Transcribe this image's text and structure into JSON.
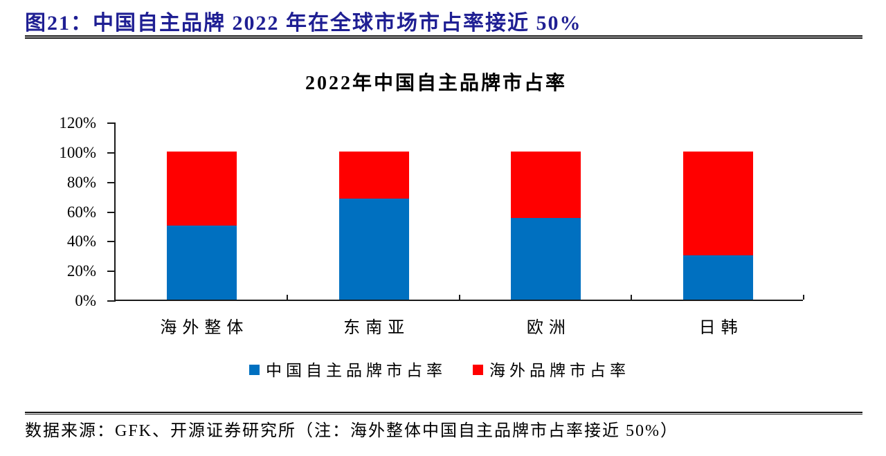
{
  "header": {
    "title": "图21：中国自主品牌 2022 年在全球市场市占率接近 50%"
  },
  "chart_data": {
    "type": "bar",
    "stacked": true,
    "title": "2022年中国自主品牌市占率",
    "categories": [
      "海外整体",
      "东南亚",
      "欧洲",
      "日韩"
    ],
    "series": [
      {
        "name": "中国自主品牌市占率",
        "color": "#0070C0",
        "values": [
          50,
          68,
          55,
          30
        ]
      },
      {
        "name": "海外品牌市占率",
        "color": "#FF0000",
        "values": [
          50,
          32,
          45,
          70
        ]
      }
    ],
    "xlabel": "",
    "ylabel": "",
    "ylim": [
      0,
      120
    ],
    "ytick_step": 20,
    "ytick_labels": [
      "0%",
      "20%",
      "40%",
      "60%",
      "80%",
      "100%",
      "120%"
    ],
    "grid": false,
    "legend_position": "bottom"
  },
  "footer": {
    "source": "数据来源：GFK、开源证券研究所（注：海外整体中国自主品牌市占率接近 50%）"
  }
}
